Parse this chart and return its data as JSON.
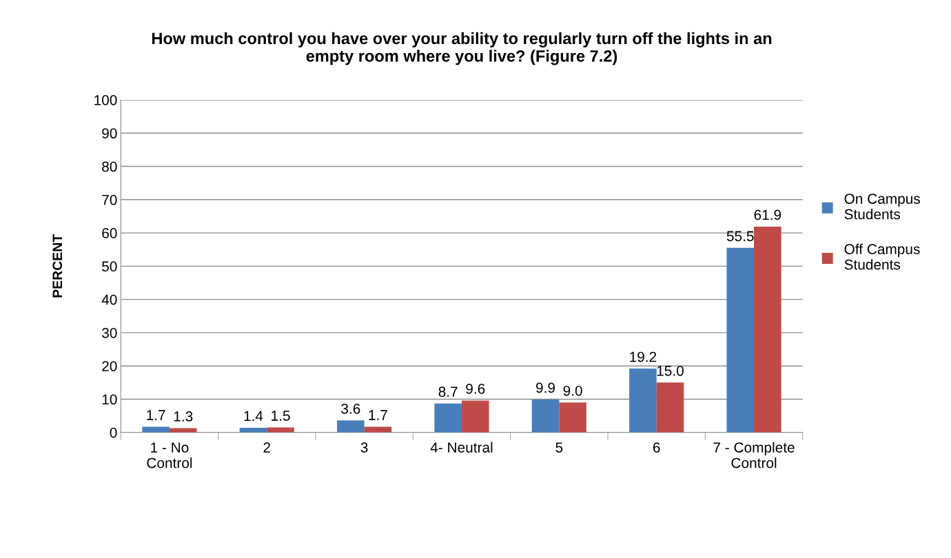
{
  "chart_data": {
    "type": "bar",
    "title": "How much control you have over your ability to regularly turn off the lights in an\nempty room where you live? (Figure 7.2)",
    "ylabel": "PERCENT",
    "categories": [
      "1 - No\nControl",
      "2",
      "3",
      "4- Neutral",
      "5",
      "6",
      "7 - Complete\nControl"
    ],
    "series": [
      {
        "name": "On Campus\nStudents",
        "color": "#4a7ebb",
        "values": [
          1.7,
          1.4,
          3.6,
          8.7,
          9.9,
          19.2,
          55.5
        ],
        "value_labels": [
          "1.7",
          "1.4",
          "3.6",
          "8.7",
          "9.9",
          "19.2",
          "55.5"
        ]
      },
      {
        "name": "Off Campus\nStudents",
        "color": "#be4b48",
        "values": [
          1.3,
          1.5,
          1.7,
          9.6,
          9.0,
          15.0,
          61.9
        ],
        "value_labels": [
          "1.3",
          "1.5",
          "1.7",
          "9.6",
          "9.0",
          "15.0",
          "61.9"
        ]
      }
    ],
    "ylim": [
      0,
      100
    ],
    "yticks": [
      0,
      10,
      20,
      30,
      40,
      50,
      60,
      70,
      80,
      90,
      100
    ],
    "grid": "y",
    "legend": "right"
  }
}
